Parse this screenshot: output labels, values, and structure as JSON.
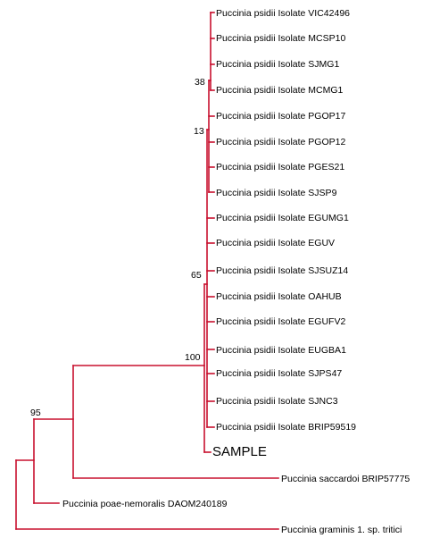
{
  "colors": {
    "branch": "#c8102e",
    "sample": "#c8102e",
    "text": "#000000"
  },
  "tree": {
    "leaves": [
      "Puccinia psidii Isolate VIC42496",
      "Puccinia psidii Isolate MCSP10",
      "Puccinia psidii Isolate SJMG1",
      "Puccinia psidii Isolate MCMG1",
      "Puccinia psidii Isolate PGOP17",
      "Puccinia psidii Isolate PGOP12",
      "Puccinia psidii Isolate PGES21",
      "Puccinia psidii Isolate SJSP9",
      "Puccinia psidii Isolate EGUMG1",
      "Puccinia psidii Isolate EGUV",
      "Puccinia psidii Isolate SJSUZ14",
      "Puccinia psidii Isolate OAHUB",
      "Puccinia psidii Isolate EGUFV2",
      "Puccinia psidii Isolate EUGBA1",
      "Puccinia psidii Isolate SJPS47",
      "Puccinia psidii Isolate SJNC3",
      "Puccinia psidii Isolate BRIP59519",
      "SAMPLE",
      "Puccinia saccardoi BRIP57775",
      "Puccinia poae-nemoralis DAOM240189",
      "Puccinia graminis 1. sp. tritici"
    ],
    "support_values": [
      "38",
      "13",
      "65",
      "100",
      "95"
    ]
  }
}
